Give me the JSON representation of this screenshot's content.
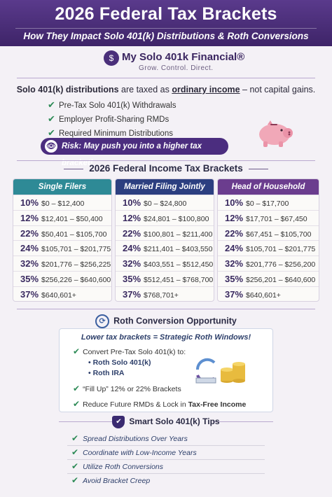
{
  "header": {
    "title": "2026 Federal Tax Brackets",
    "subtitle": "How They Impact Solo 401(k) Distributions & Roth Conversions"
  },
  "brand": {
    "name": "My Solo 401k Financial®",
    "tagline": "Grow. Control. Direct."
  },
  "intro": {
    "lead": "Solo 401(k) distributions",
    "middle": " are taxed as ",
    "emphasis": "ordinary income",
    "tail": " – not capital gains."
  },
  "checks": [
    "Pre-Tax Solo 401(k) Withdrawals",
    "Employer Profit-Sharing RMDs",
    "Required Minimum Distributions"
  ],
  "risk": {
    "text": "Risk: May push you into a higher tax bracket!"
  },
  "brackets_title": "2026 Federal Income Tax Brackets",
  "columns": [
    {
      "name": "Single Filers",
      "color": "#2e8a96",
      "rows": [
        {
          "rate": "10%",
          "range": "$0 – $12,400"
        },
        {
          "rate": "12%",
          "range": "$12,401 – $50,400"
        },
        {
          "rate": "22%",
          "range": "$50,401 – $105,700"
        },
        {
          "rate": "24%",
          "range": "$105,701 – $201,775"
        },
        {
          "rate": "32%",
          "range": "$201,776 – $256,225"
        },
        {
          "rate": "35%",
          "range": "$256,226 – $640,600"
        },
        {
          "rate": "37%",
          "range": "$640,601+"
        }
      ]
    },
    {
      "name": "Married Filing Jointly",
      "color": "#2c3f80",
      "rows": [
        {
          "rate": "10%",
          "range": "$0 – $24,800"
        },
        {
          "rate": "12%",
          "range": "$24,801 – $100,800"
        },
        {
          "rate": "22%",
          "range": "$100,801 – $211,400"
        },
        {
          "rate": "24%",
          "range": "$211,401 – $403,550"
        },
        {
          "rate": "32%",
          "range": "$403,551 – $512,450"
        },
        {
          "rate": "35%",
          "range": "$512,451 – $768,700"
        },
        {
          "rate": "37%",
          "range": "$768,701+"
        }
      ]
    },
    {
      "name": "Head of Household",
      "color": "#6b3d8e",
      "rows": [
        {
          "rate": "10%",
          "range": "$0 – $17,700"
        },
        {
          "rate": "12%",
          "range": "$17,701 – $67,450"
        },
        {
          "rate": "22%",
          "range": "$67,451 – $105,700"
        },
        {
          "rate": "24%",
          "range": "$105,701 – $201,775"
        },
        {
          "rate": "32%",
          "range": "$201,776 – $256,200"
        },
        {
          "rate": "35%",
          "range": "$256,201 – $640,600"
        },
        {
          "rate": "37%",
          "range": "$640,601+"
        }
      ]
    }
  ],
  "roth": {
    "title": "Roth Conversion Opportunity",
    "lead": "Lower tax brackets = Strategic Roth Windows!",
    "convert": "Convert Pre-Tax Solo 401(k) to:",
    "targets": [
      "• Roth Solo 401(k)",
      "• Roth IRA"
    ],
    "fill_up": "“Fill Up” 12% or 22% Brackets",
    "reduce_lead": "Reduce Future RMDs & Lock in ",
    "reduce_emph": "Tax-Free Income"
  },
  "tips": {
    "title": "Smart Solo 401(k) Tips",
    "items": [
      "Spread Distributions Over Years",
      "Coordinate with Low-Income Years",
      "Utilize Roth Conversions",
      "Avoid Bracket Creep"
    ]
  },
  "icons": {
    "logo": "dollar-s-logo-icon",
    "check": "check-icon",
    "risk": "piggy-eye-icon",
    "piggy": "piggy-bank-icon",
    "sync": "sync-arrows-icon",
    "coins": "coin-stack-icon",
    "shield": "shield-check-icon"
  }
}
